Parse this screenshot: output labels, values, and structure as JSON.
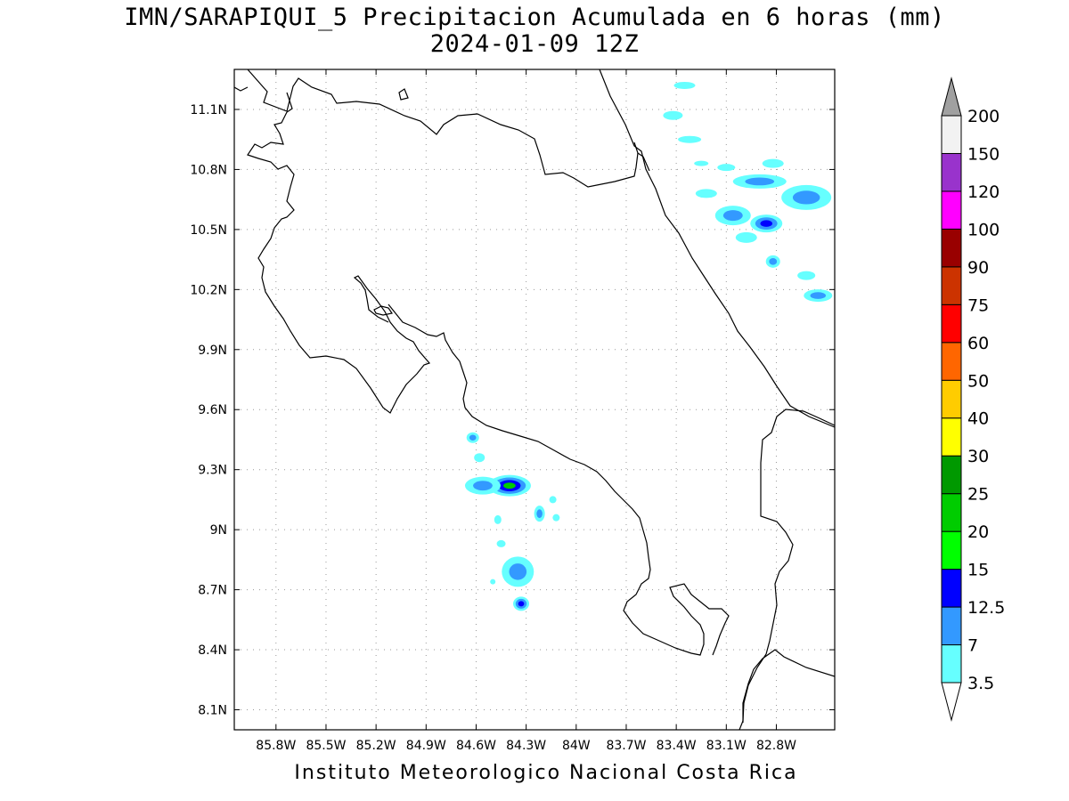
{
  "header": {
    "title": "IMN/SARAPIQUI_5 Precipitacion Acumulada en 6 horas (mm)",
    "subtitle": "2024-01-09 12Z"
  },
  "footer": {
    "credit": "Instituto Meteorologico Nacional Costa Rica"
  },
  "map": {
    "lon_range": [
      -86.05,
      -82.45
    ],
    "lat_range": [
      8.0,
      11.3
    ],
    "lon_ticks": [
      {
        "v": -85.8,
        "label": "85.8W"
      },
      {
        "v": -85.5,
        "label": "85.5W"
      },
      {
        "v": -85.2,
        "label": "85.2W"
      },
      {
        "v": -84.9,
        "label": "84.9W"
      },
      {
        "v": -84.6,
        "label": "84.6W"
      },
      {
        "v": -84.3,
        "label": "84.3W"
      },
      {
        "v": -84.0,
        "label": "84W"
      },
      {
        "v": -83.7,
        "label": "83.7W"
      },
      {
        "v": -83.4,
        "label": "83.4W"
      },
      {
        "v": -83.1,
        "label": "83.1W"
      },
      {
        "v": -82.8,
        "label": "82.8W"
      }
    ],
    "lat_ticks": [
      {
        "v": 11.1,
        "label": "11.1N"
      },
      {
        "v": 10.8,
        "label": "10.8N"
      },
      {
        "v": 10.5,
        "label": "10.5N"
      },
      {
        "v": 10.2,
        "label": "10.2N"
      },
      {
        "v": 9.9,
        "label": "9.9N"
      },
      {
        "v": 9.6,
        "label": "9.6N"
      },
      {
        "v": 9.3,
        "label": "9.3N"
      },
      {
        "v": 9.0,
        "label": "9N"
      },
      {
        "v": 8.7,
        "label": "8.7N"
      },
      {
        "v": 8.4,
        "label": "8.4N"
      },
      {
        "v": 8.1,
        "label": "8.1N"
      }
    ],
    "grid": "dotted"
  },
  "legend": {
    "thresholds": [
      "3.5",
      "7",
      "12.5",
      "15",
      "20",
      "25",
      "30",
      "40",
      "50",
      "60",
      "75",
      "90",
      "100",
      "120",
      "150",
      "200"
    ],
    "colors": [
      "#66ffff",
      "#3399ff",
      "#0000ff",
      "#00ff00",
      "#00cc00",
      "#009900",
      "#ffff00",
      "#ffcc00",
      "#ff6600",
      "#ff0000",
      "#cc3300",
      "#990000",
      "#ff00ff",
      "#9933cc",
      "#f2f2f2",
      "#a0a0a0"
    ]
  },
  "precip_cells": [
    {
      "lon": -84.4,
      "lat": 9.22,
      "rx": 24,
      "ry": 12,
      "levels": [
        "#66ffff",
        "#3399ff",
        "#0000ff",
        "#00cc00"
      ]
    },
    {
      "lon": -84.56,
      "lat": 9.22,
      "rx": 20,
      "ry": 10,
      "levels": [
        "#66ffff",
        "#3399ff"
      ]
    },
    {
      "lon": -84.35,
      "lat": 8.79,
      "rx": 18,
      "ry": 17,
      "levels": [
        "#66ffff",
        "#3399ff"
      ]
    },
    {
      "lon": -84.33,
      "lat": 8.63,
      "rx": 9,
      "ry": 8,
      "levels": [
        "#66ffff",
        "#3399ff",
        "#0000ff"
      ]
    },
    {
      "lon": -84.22,
      "lat": 9.08,
      "rx": 6,
      "ry": 9,
      "levels": [
        "#66ffff",
        "#3399ff"
      ]
    },
    {
      "lon": -84.62,
      "lat": 9.46,
      "rx": 7,
      "ry": 6,
      "levels": [
        "#66ffff",
        "#3399ff"
      ]
    },
    {
      "lon": -84.58,
      "lat": 9.36,
      "rx": 6,
      "ry": 5,
      "levels": [
        "#66ffff"
      ]
    },
    {
      "lon": -84.12,
      "lat": 9.06,
      "rx": 4,
      "ry": 4,
      "levels": [
        "#66ffff"
      ]
    },
    {
      "lon": -84.14,
      "lat": 9.15,
      "rx": 4,
      "ry": 4,
      "levels": [
        "#66ffff"
      ]
    },
    {
      "lon": -84.47,
      "lat": 9.05,
      "rx": 4,
      "ry": 5,
      "levels": [
        "#66ffff"
      ]
    },
    {
      "lon": -84.45,
      "lat": 8.93,
      "rx": 5,
      "ry": 4,
      "levels": [
        "#66ffff"
      ]
    },
    {
      "lon": -84.5,
      "lat": 8.74,
      "rx": 3,
      "ry": 3,
      "levels": [
        "#66ffff"
      ]
    },
    {
      "lon": -83.35,
      "lat": 11.22,
      "rx": 12,
      "ry": 4,
      "levels": [
        "#66ffff"
      ]
    },
    {
      "lon": -83.42,
      "lat": 11.07,
      "rx": 11,
      "ry": 5,
      "levels": [
        "#66ffff"
      ]
    },
    {
      "lon": -83.32,
      "lat": 10.95,
      "rx": 13,
      "ry": 4,
      "levels": [
        "#66ffff"
      ]
    },
    {
      "lon": -83.25,
      "lat": 10.83,
      "rx": 8,
      "ry": 3,
      "levels": [
        "#66ffff"
      ]
    },
    {
      "lon": -83.1,
      "lat": 10.81,
      "rx": 10,
      "ry": 4,
      "levels": [
        "#66ffff"
      ]
    },
    {
      "lon": -82.82,
      "lat": 10.83,
      "rx": 12,
      "ry": 5,
      "levels": [
        "#66ffff"
      ]
    },
    {
      "lon": -83.22,
      "lat": 10.68,
      "rx": 12,
      "ry": 5,
      "levels": [
        "#66ffff"
      ]
    },
    {
      "lon": -82.9,
      "lat": 10.74,
      "rx": 30,
      "ry": 8,
      "levels": [
        "#66ffff",
        "#3399ff"
      ]
    },
    {
      "lon": -82.62,
      "lat": 10.66,
      "rx": 28,
      "ry": 14,
      "levels": [
        "#66ffff",
        "#3399ff"
      ]
    },
    {
      "lon": -83.06,
      "lat": 10.57,
      "rx": 20,
      "ry": 11,
      "levels": [
        "#66ffff",
        "#3399ff"
      ]
    },
    {
      "lon": -82.86,
      "lat": 10.53,
      "rx": 18,
      "ry": 10,
      "levels": [
        "#66ffff",
        "#3399ff",
        "#0000ff"
      ]
    },
    {
      "lon": -82.98,
      "lat": 10.46,
      "rx": 12,
      "ry": 6,
      "levels": [
        "#66ffff"
      ]
    },
    {
      "lon": -82.82,
      "lat": 10.34,
      "rx": 8,
      "ry": 7,
      "levels": [
        "#66ffff",
        "#3399ff"
      ]
    },
    {
      "lon": -82.62,
      "lat": 10.27,
      "rx": 10,
      "ry": 5,
      "levels": [
        "#66ffff"
      ]
    },
    {
      "lon": -82.55,
      "lat": 10.17,
      "rx": 16,
      "ry": 7,
      "levels": [
        "#66ffff",
        "#3399ff"
      ]
    }
  ]
}
